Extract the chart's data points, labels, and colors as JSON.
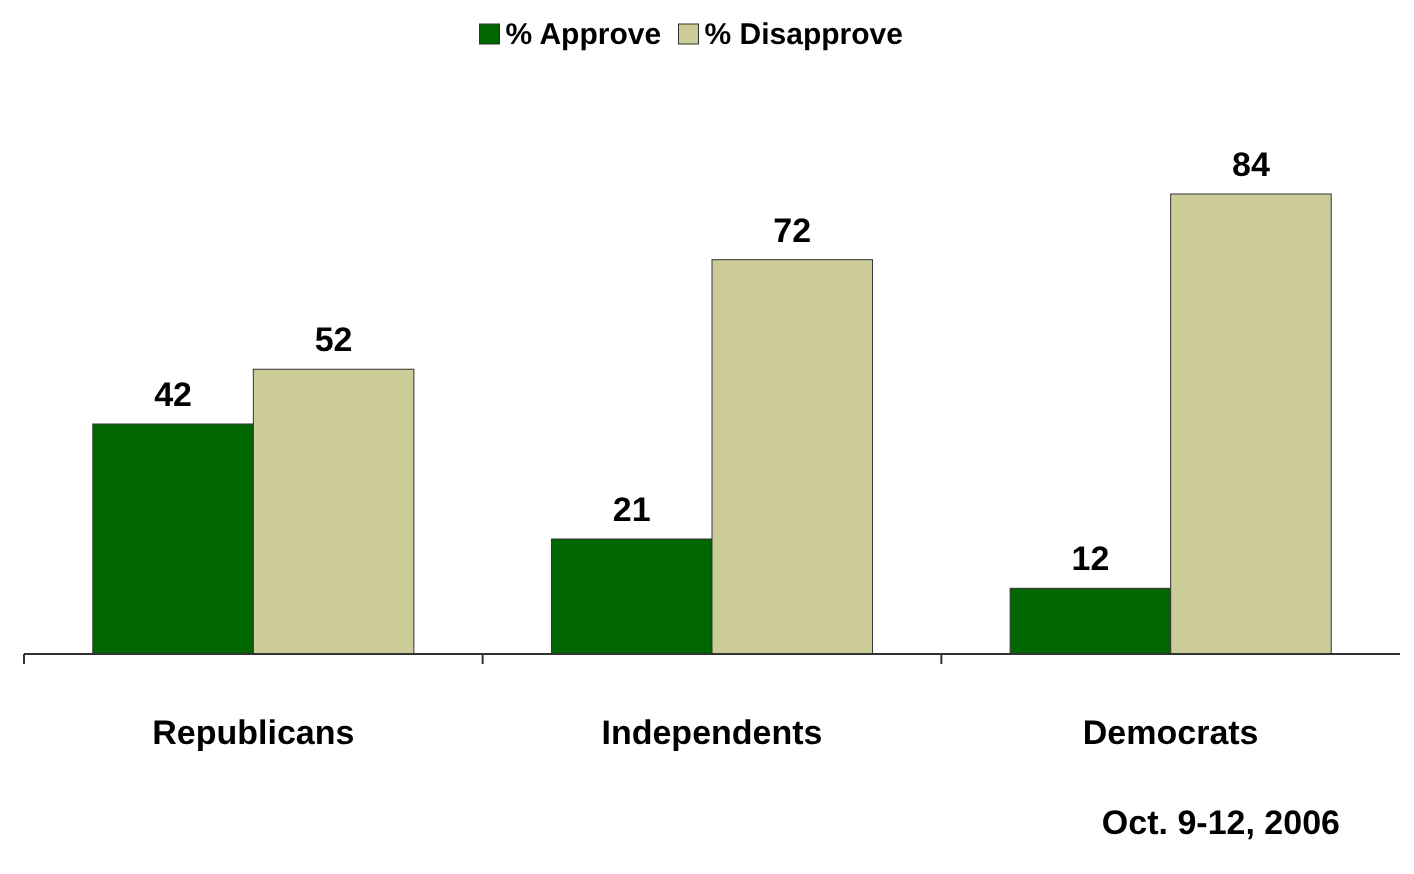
{
  "chart_data": {
    "type": "bar",
    "categories": [
      "Republicans",
      "Independents",
      "Democrats"
    ],
    "series": [
      {
        "name": "% Approve",
        "color": "#006600",
        "values": [
          42,
          21,
          12
        ]
      },
      {
        "name": "% Disapprove",
        "color": "#cccc99",
        "values": [
          52,
          72,
          84
        ]
      }
    ],
    "data_labels": true,
    "legend": "top",
    "annotations": [
      "Oct. 9-12, 2006"
    ]
  }
}
